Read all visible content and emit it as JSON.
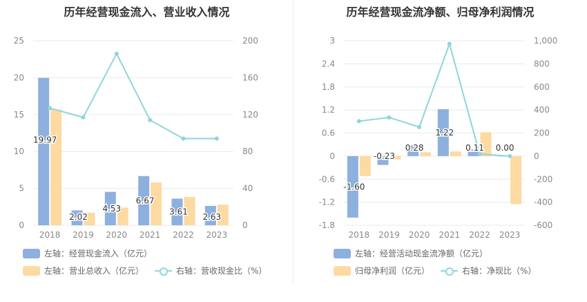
{
  "colors": {
    "bar_blue": "#8EB0DE",
    "bar_orange": "#FDDAA2",
    "line": "#8CD6DD",
    "grid": "#E8EAF0",
    "axis_text": "#888888"
  },
  "chart_data": [
    {
      "type": "bar+line",
      "title": "历年经营现金流入、营业收入情况",
      "categories": [
        "2018",
        "2019",
        "2020",
        "2021",
        "2022",
        "2023"
      ],
      "left_axis": {
        "min": 0,
        "max": 25,
        "ticks": [
          "0",
          "5",
          "10",
          "15",
          "20",
          "25"
        ]
      },
      "right_axis": {
        "min": 0,
        "max": 200,
        "ticks": [
          "0",
          "40",
          "80",
          "120",
          "160",
          "200"
        ]
      },
      "series": [
        {
          "name": "左轴：经营现金流入（亿元）",
          "kind": "bar",
          "axis": "left",
          "color": "#8EB0DE",
          "values": [
            19.97,
            2.02,
            4.53,
            6.67,
            3.61,
            2.63
          ],
          "labels": [
            "19.97",
            "2.02",
            "4.53",
            "6.67",
            "3.61",
            "2.63"
          ]
        },
        {
          "name": "左轴：营业总收入（亿元）",
          "kind": "bar",
          "axis": "left",
          "color": "#FDDAA2",
          "values": [
            15.7,
            1.7,
            2.4,
            5.8,
            3.85,
            2.8
          ]
        },
        {
          "name": "右轴：营收现金比（%）",
          "kind": "line",
          "axis": "right",
          "color": "#8CD6DD",
          "values": [
            127,
            117,
            186,
            114,
            94,
            94
          ]
        }
      ],
      "legend_rows": [
        [
          "0"
        ],
        [
          "1",
          "2"
        ]
      ]
    },
    {
      "type": "bar+line",
      "title": "历年经营现金流净额、归母净利润情况",
      "categories": [
        "2018",
        "2019",
        "2020",
        "2021",
        "2022",
        "2023"
      ],
      "left_axis": {
        "min": -1.8,
        "max": 3.0,
        "ticks": [
          "-1.8",
          "-1.2",
          "-0.6",
          "0",
          "0.6",
          "1.2",
          "1.8",
          "2.4",
          "3"
        ]
      },
      "right_axis": {
        "min": -600,
        "max": 1000,
        "ticks": [
          "-600",
          "-400",
          "-200",
          "0",
          "200",
          "400",
          "600",
          "800",
          "1,000"
        ]
      },
      "series": [
        {
          "name": "左轴：经营活动现金流净额（亿元）",
          "kind": "bar",
          "axis": "left",
          "color": "#8EB0DE",
          "values": [
            -1.6,
            -0.23,
            0.28,
            1.22,
            0.11,
            0.0
          ],
          "labels": [
            "-1.60",
            "-0.23",
            "0.28",
            "1.22",
            "0.11",
            "0.00"
          ]
        },
        {
          "name": "归母净利润（亿元）",
          "kind": "bar",
          "axis": "left",
          "color": "#FDDAA2",
          "values": [
            -0.52,
            -0.09,
            0.1,
            0.12,
            0.62,
            -1.25
          ]
        },
        {
          "name": "右轴：净现比（%）",
          "kind": "line",
          "axis": "right",
          "color": "#8CD6DD",
          "values": [
            303,
            335,
            252,
            974,
            18,
            0
          ]
        }
      ],
      "legend_rows": [
        [
          "0"
        ],
        [
          "1",
          "2"
        ]
      ]
    }
  ]
}
